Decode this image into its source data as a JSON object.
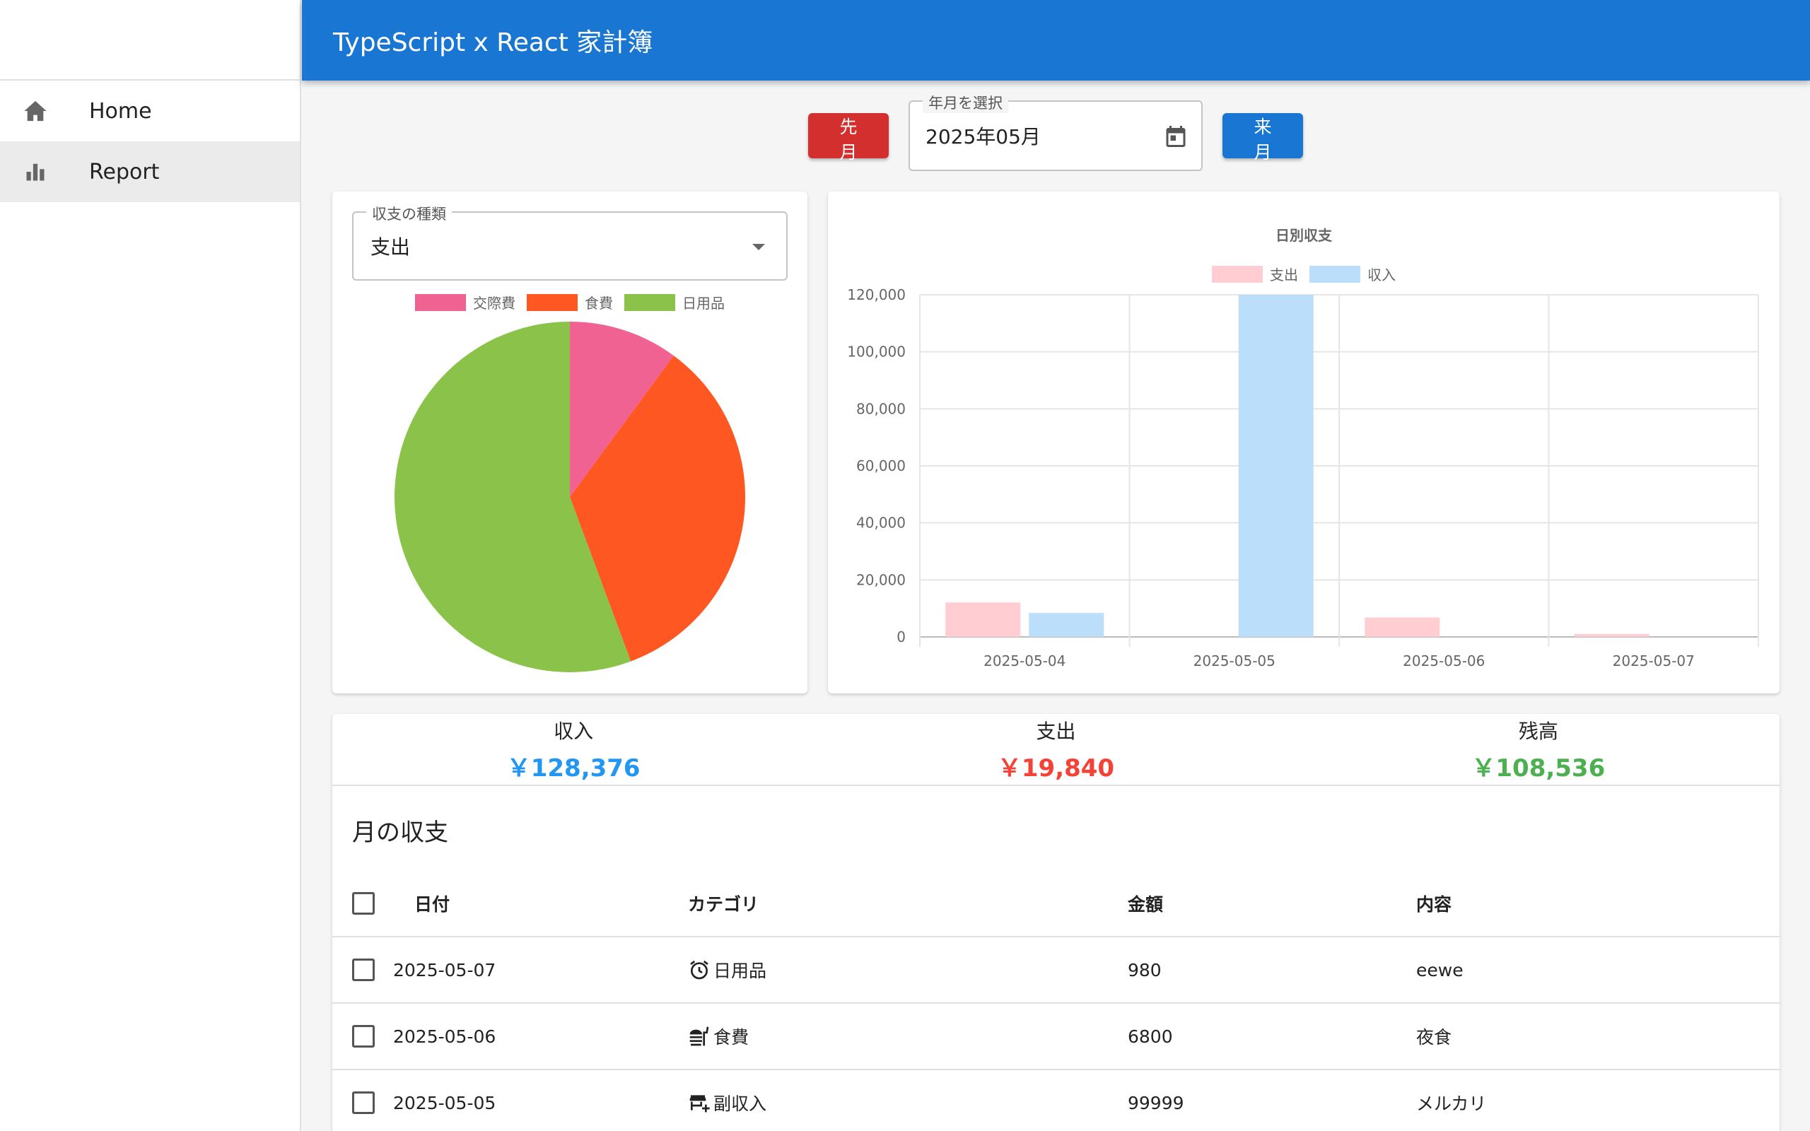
{
  "app": {
    "title": "TypeScript x React 家計簿"
  },
  "sidebar": {
    "items": [
      {
        "label": "Home",
        "icon": "home-icon"
      },
      {
        "label": "Report",
        "icon": "bar-chart-icon",
        "active": true
      }
    ]
  },
  "month_selector": {
    "prev_label": "先月",
    "next_label": "来月",
    "field_label": "年月を選択",
    "value": "2025年05月"
  },
  "pie": {
    "select_label": "収支の種類",
    "select_value": "支出",
    "legend": [
      {
        "name": "交際費",
        "color": "#f06292"
      },
      {
        "name": "食費",
        "color": "#ff5722"
      },
      {
        "name": "日用品",
        "color": "#8bc34a"
      }
    ]
  },
  "chart_data": [
    {
      "type": "pie",
      "labels": [
        "交際費",
        "食費",
        "日用品"
      ],
      "values": [
        2000,
        6800,
        11040
      ],
      "colors": [
        "#f06292",
        "#ff5722",
        "#8bc34a"
      ]
    },
    {
      "type": "bar",
      "title": "日別収支",
      "categories": [
        "2025-05-04",
        "2025-05-05",
        "2025-05-06",
        "2025-05-07"
      ],
      "series": [
        {
          "name": "支出",
          "values": [
            12060,
            0,
            6800,
            980
          ],
          "color": "#ffcdd2"
        },
        {
          "name": "収入",
          "values": [
            8377,
            119999,
            0,
            0
          ],
          "color": "#bbdefb"
        }
      ],
      "ylim": [
        0,
        120000
      ],
      "yticks": [
        "0",
        "20,000",
        "40,000",
        "60,000",
        "80,000",
        "100,000",
        "120,000"
      ],
      "grid": true,
      "legend": "top"
    }
  ],
  "summary": {
    "income_label": "収入",
    "income_value": "￥128,376",
    "expense_label": "支出",
    "expense_value": "￥19,840",
    "balance_label": "残高",
    "balance_value": "￥108,536"
  },
  "table": {
    "title": "月の収支",
    "headers": {
      "date": "日付",
      "category": "カテゴリ",
      "amount": "金額",
      "note": "内容"
    },
    "rows": [
      {
        "date": "2025-05-07",
        "category": "日用品",
        "icon": "alarm-clock-icon",
        "amount": "980",
        "note": "eewe"
      },
      {
        "date": "2025-05-06",
        "category": "食費",
        "icon": "fastfood-icon",
        "amount": "6800",
        "note": "夜食"
      },
      {
        "date": "2025-05-05",
        "category": "副収入",
        "icon": "add-business-icon",
        "amount": "99999",
        "note": "メルカリ"
      }
    ]
  }
}
